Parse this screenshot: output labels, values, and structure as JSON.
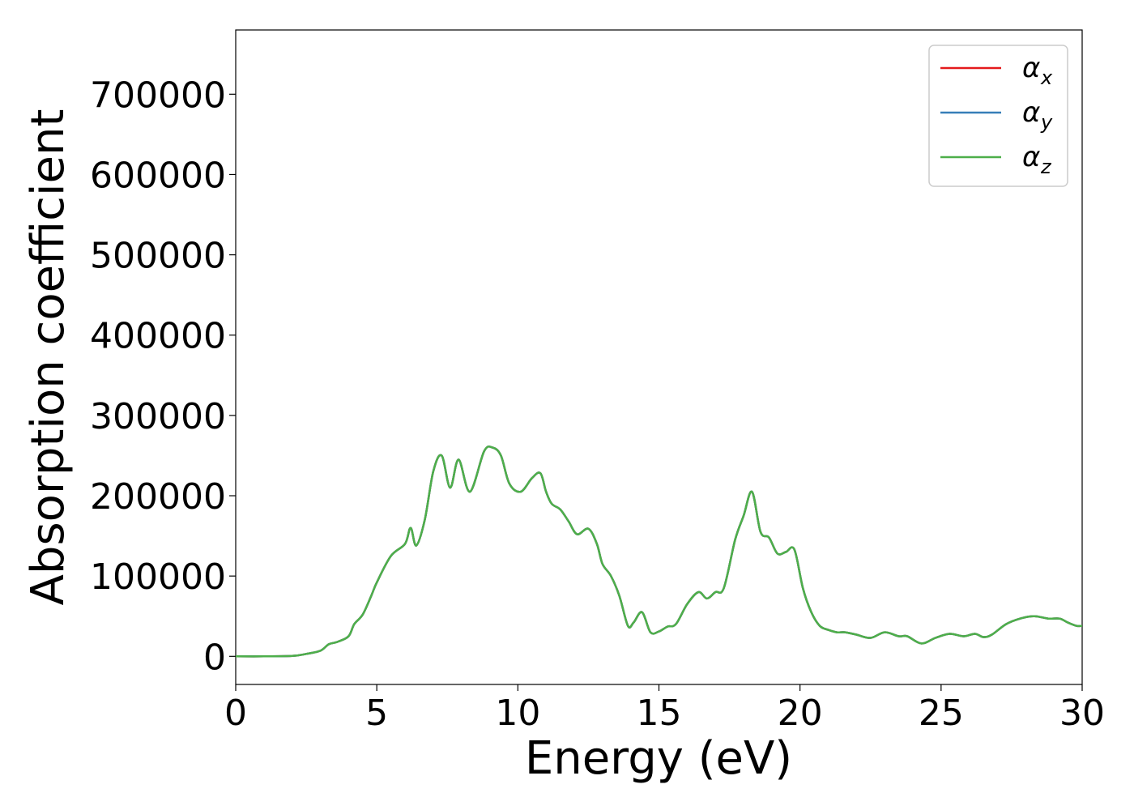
{
  "chart_data": {
    "type": "line",
    "xlabel": "Energy (eV)",
    "ylabel": "Absorption coefficient",
    "xlim": [
      0,
      30
    ],
    "ylim": [
      -35000,
      780000
    ],
    "xticks": [
      0,
      5,
      10,
      15,
      20,
      25,
      30
    ],
    "xtick_labels": [
      "0",
      "5",
      "10",
      "15",
      "20",
      "25",
      "30"
    ],
    "yticks": [
      0,
      100000,
      200000,
      300000,
      400000,
      500000,
      600000,
      700000
    ],
    "ytick_labels": [
      "0",
      "100000",
      "200000",
      "300000",
      "400000",
      "500000",
      "600000",
      "700000"
    ],
    "grid": false,
    "legend_position": "top-right",
    "x": [
      0,
      1,
      2,
      2.5,
      3,
      3.3,
      3.6,
      4,
      4.2,
      4.5,
      4.8,
      5,
      5.5,
      6,
      6.2,
      6.4,
      6.7,
      7,
      7.3,
      7.6,
      7.9,
      8.3,
      8.8,
      9.1,
      9.4,
      9.7,
      10.1,
      10.5,
      10.8,
      11,
      11.2,
      11.5,
      11.8,
      12.1,
      12.5,
      12.8,
      13,
      13.3,
      13.6,
      13.9,
      14.1,
      14.4,
      14.7,
      15,
      15.3,
      15.6,
      16,
      16.4,
      16.7,
      17,
      17.3,
      17.7,
      18,
      18.3,
      18.6,
      18.9,
      19.2,
      19.5,
      19.8,
      20.1,
      20.4,
      20.7,
      21,
      21.3,
      21.6,
      22,
      22.5,
      23,
      23.5,
      23.8,
      24.3,
      24.8,
      25.3,
      25.8,
      26.2,
      26.5,
      26.8,
      27.3,
      27.8,
      28.3,
      28.8,
      29.2,
      29.5,
      29.8,
      30
    ],
    "series": [
      {
        "name": "x",
        "color": "#e41a1c",
        "values": [
          0,
          0,
          500,
          3000,
          7000,
          15000,
          18000,
          25000,
          40000,
          52000,
          75000,
          92000,
          125000,
          140000,
          160000,
          138000,
          170000,
          230000,
          250000,
          210000,
          245000,
          205000,
          255000,
          260000,
          250000,
          215000,
          205000,
          222000,
          228000,
          205000,
          190000,
          183000,
          168000,
          152000,
          159000,
          140000,
          115000,
          100000,
          75000,
          38000,
          42000,
          55000,
          30000,
          31000,
          37000,
          40000,
          65000,
          80000,
          72000,
          80000,
          85000,
          145000,
          175000,
          205000,
          155000,
          148000,
          128000,
          130000,
          133000,
          85000,
          55000,
          38000,
          33000,
          30000,
          30000,
          27000,
          23000,
          30000,
          25000,
          25000,
          16000,
          23000,
          28000,
          25000,
          28000,
          24000,
          27000,
          40000,
          47000,
          50000,
          47000,
          47000,
          42000,
          38000,
          38000
        ]
      },
      {
        "name": "y",
        "color": "#377eb8",
        "values": [
          0,
          0,
          500,
          3000,
          7000,
          15000,
          18000,
          25000,
          40000,
          52000,
          75000,
          92000,
          125000,
          140000,
          160000,
          138000,
          170000,
          230000,
          250000,
          210000,
          245000,
          205000,
          255000,
          260000,
          250000,
          215000,
          205000,
          222000,
          228000,
          205000,
          190000,
          183000,
          168000,
          152000,
          159000,
          140000,
          115000,
          100000,
          75000,
          38000,
          42000,
          55000,
          30000,
          31000,
          37000,
          40000,
          65000,
          80000,
          72000,
          80000,
          85000,
          145000,
          175000,
          205000,
          155000,
          148000,
          128000,
          130000,
          133000,
          85000,
          55000,
          38000,
          33000,
          30000,
          30000,
          27000,
          23000,
          30000,
          25000,
          25000,
          16000,
          23000,
          28000,
          25000,
          28000,
          24000,
          27000,
          40000,
          47000,
          50000,
          47000,
          47000,
          42000,
          38000,
          38000
        ]
      },
      {
        "name": "z",
        "color": "#4daf4a",
        "values": [
          0,
          0,
          500,
          3000,
          7000,
          15000,
          18000,
          25000,
          40000,
          52000,
          75000,
          92000,
          125000,
          140000,
          160000,
          138000,
          170000,
          230000,
          250000,
          210000,
          245000,
          205000,
          255000,
          260000,
          250000,
          215000,
          205000,
          222000,
          228000,
          205000,
          190000,
          183000,
          168000,
          152000,
          159000,
          140000,
          115000,
          100000,
          75000,
          38000,
          42000,
          55000,
          30000,
          31000,
          37000,
          40000,
          65000,
          80000,
          72000,
          80000,
          85000,
          145000,
          175000,
          205000,
          155000,
          148000,
          128000,
          130000,
          133000,
          85000,
          55000,
          38000,
          33000,
          30000,
          30000,
          27000,
          23000,
          30000,
          25000,
          25000,
          16000,
          23000,
          28000,
          25000,
          28000,
          24000,
          27000,
          40000,
          47000,
          50000,
          47000,
          47000,
          42000,
          38000,
          38000
        ]
      }
    ],
    "legend": [
      {
        "symbol": "α",
        "sub": "x",
        "color": "#e41a1c"
      },
      {
        "symbol": "α",
        "sub": "y",
        "color": "#377eb8"
      },
      {
        "symbol": "α",
        "sub": "z",
        "color": "#4daf4a"
      }
    ]
  }
}
